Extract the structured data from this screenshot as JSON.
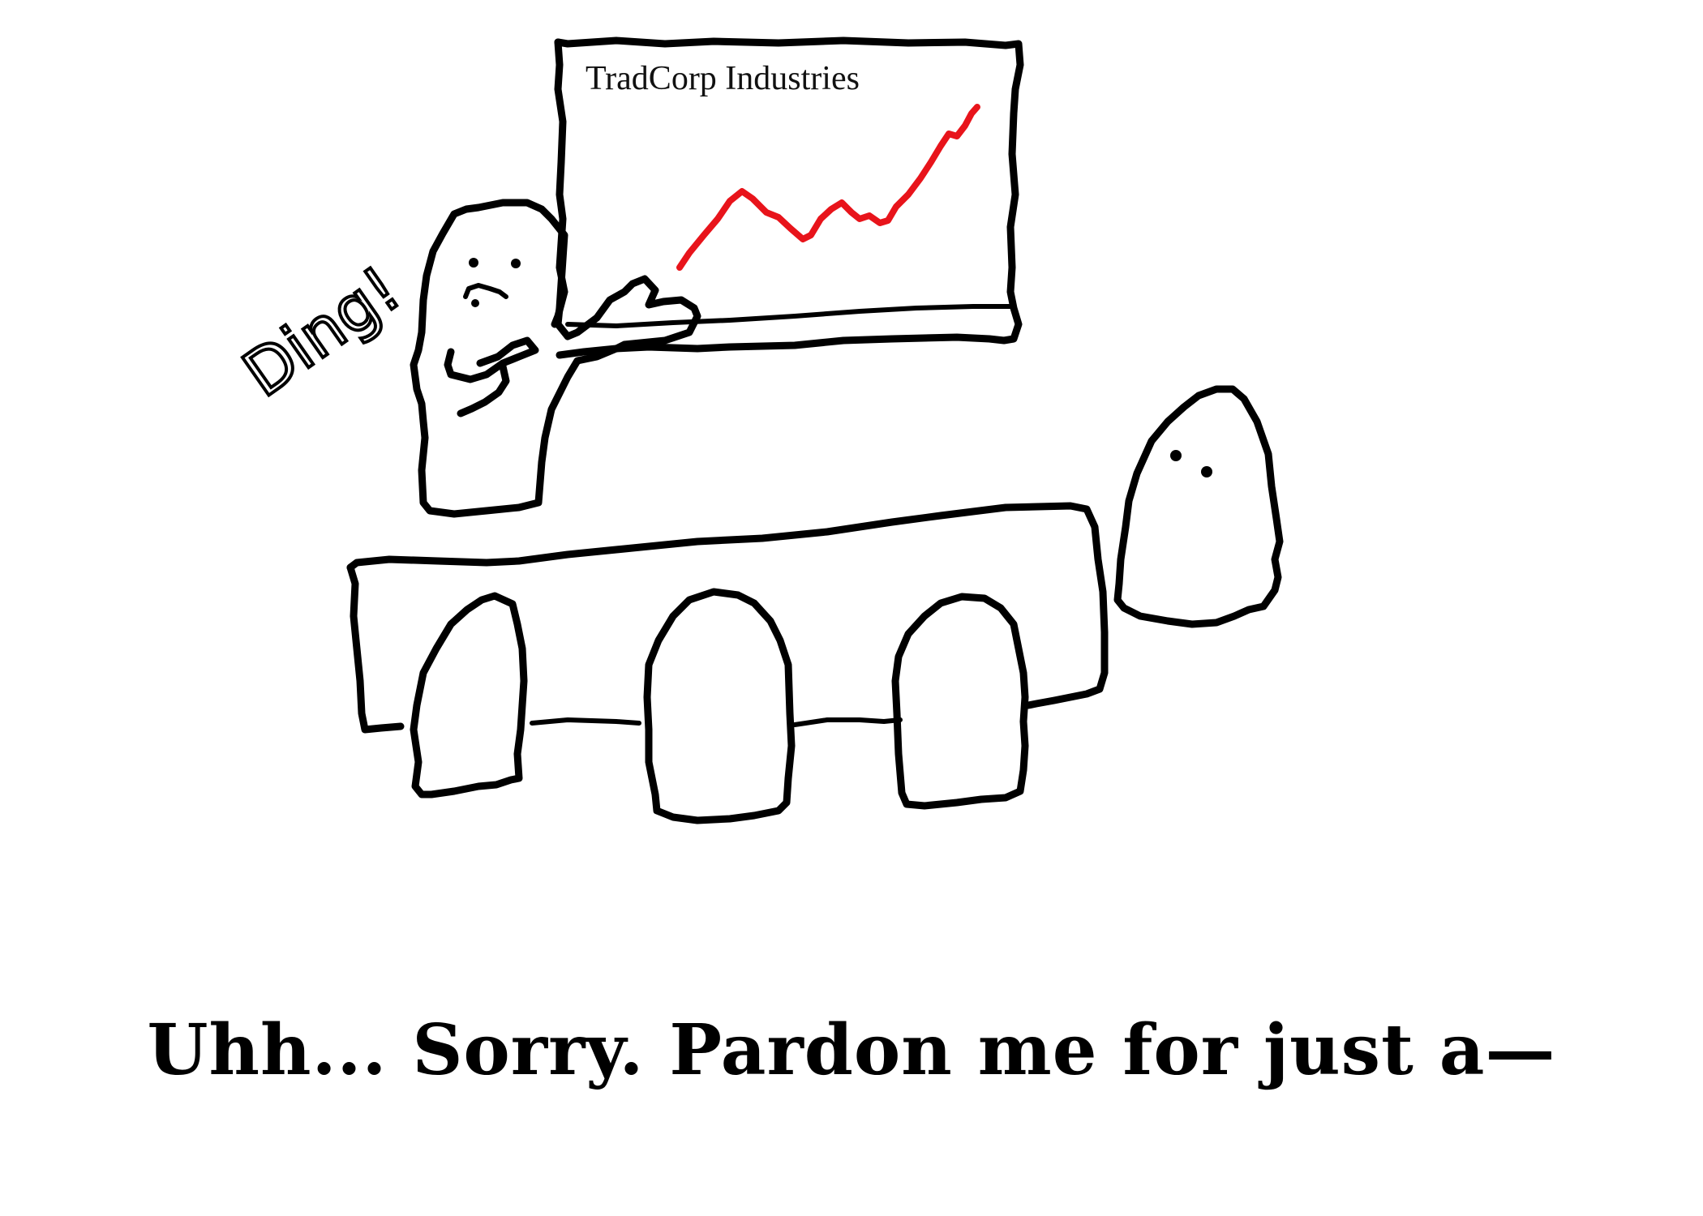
{
  "screen": {
    "title": "TradCorp Industries",
    "trend_color": "#e8141b"
  },
  "sound_effect": "Ding!",
  "caption": "Uhh... Sorry. Pardon me for just a—"
}
